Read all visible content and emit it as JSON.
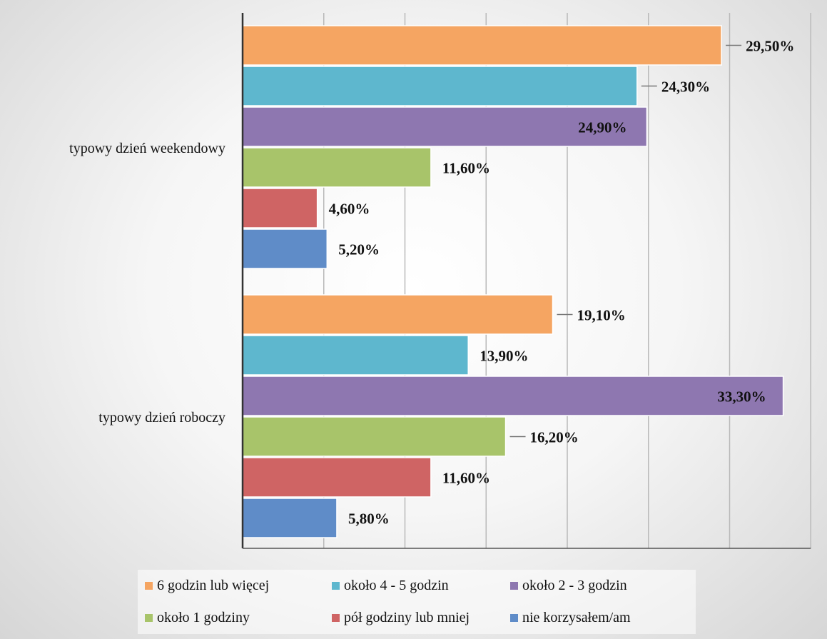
{
  "chart_data": {
    "type": "bar",
    "orientation": "horizontal",
    "categories": [
      "typowy dzień weekendowy",
      "typowy dzień roboczy"
    ],
    "series": [
      {
        "name": "6 godzin lub więcej",
        "color": "#F5A562",
        "values": [
          29.5,
          19.1
        ],
        "labels": [
          "29,50%",
          "19,10%"
        ]
      },
      {
        "name": "około 4 - 5 godzin",
        "color": "#5EB7CE",
        "values": [
          24.3,
          13.9
        ],
        "labels": [
          "24,30%",
          "13,90%"
        ]
      },
      {
        "name": "około 2 - 3 godzin",
        "color": "#8E77B0",
        "values": [
          24.9,
          33.3
        ],
        "labels": [
          "24,90%",
          "33,30%"
        ]
      },
      {
        "name": "około 1 godziny",
        "color": "#A8C46A",
        "values": [
          11.6,
          16.2
        ],
        "labels": [
          "11,60%",
          "16,20%"
        ]
      },
      {
        "name": "pół godziny lub mniej",
        "color": "#CF6464",
        "values": [
          4.6,
          11.6
        ],
        "labels": [
          "4,60%",
          "11,60%"
        ]
      },
      {
        "name": "nie korzysałem/am",
        "color": "#5F8CC8",
        "values": [
          5.2,
          5.8
        ],
        "labels": [
          "5,20%",
          "5,80%"
        ]
      }
    ],
    "xlim": [
      0,
      35
    ],
    "grid": true,
    "legend_position": "bottom"
  }
}
